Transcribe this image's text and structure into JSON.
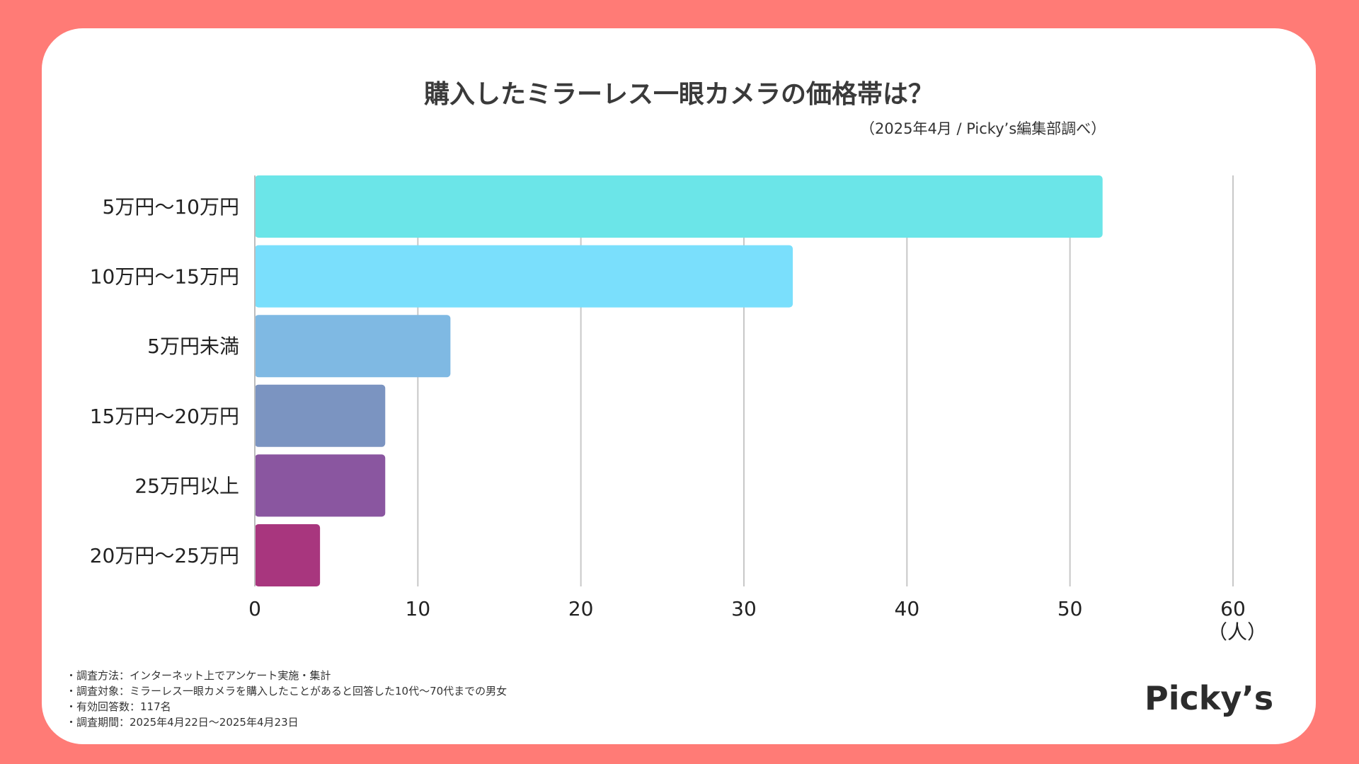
{
  "chart_data": {
    "type": "bar",
    "orientation": "horizontal",
    "title": "購入したミラーレス一眼カメラの価格帯は？",
    "subtitle": "（2025年4月 / Picky’s編集部調べ）",
    "categories": [
      "5万円〜10万円",
      "10万円〜15万円",
      "5万円未満",
      "15万円〜20万円",
      "25万円以上",
      "20万円〜25万円"
    ],
    "values": [
      52,
      33,
      12,
      8,
      8,
      4
    ],
    "colors": [
      "#6BE5E8",
      "#7ADFFC",
      "#7FB9E3",
      "#7B94C1",
      "#8A56A0",
      "#A8367E"
    ],
    "xlim": [
      0,
      60
    ],
    "xticks": [
      "0",
      "10",
      "20",
      "30",
      "40",
      "50",
      "60"
    ],
    "xunit": "（人）",
    "grid": true
  },
  "notes": [
    "・調査方法：インターネット上でアンケート実施・集計",
    "・調査対象：ミラーレス一眼カメラを購入したことがあると回答した10代〜70代までの男女",
    "・有効回答数：117名",
    "・調査期間：2025年4月22日〜2025年4月23日"
  ],
  "logo": "Picky’s"
}
